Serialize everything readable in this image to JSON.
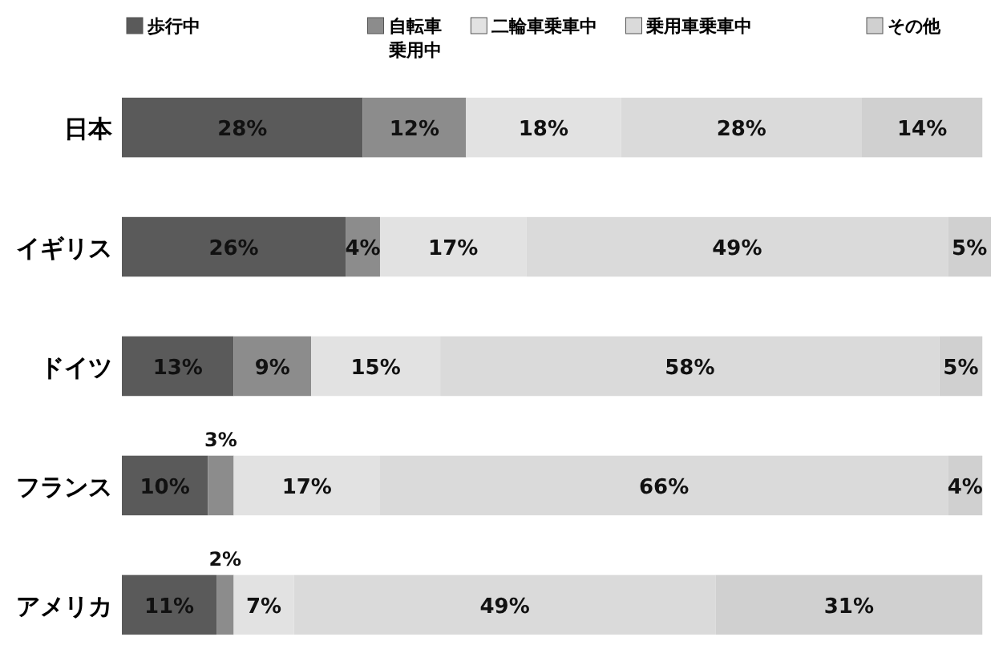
{
  "chart_data": {
    "type": "bar",
    "orientation": "horizontal",
    "stacked": true,
    "legend": "top",
    "tick_labels": "y",
    "xlim": [
      0,
      101
    ],
    "categories": [
      "日本",
      "イギリス",
      "ドイツ",
      "フランス",
      "アメリカ"
    ],
    "series": [
      {
        "name": "歩行中",
        "color": "#5a5a5a",
        "values": [
          28,
          26,
          13,
          10,
          11
        ],
        "value_labels": [
          "28%",
          "26%",
          "13%",
          "10%",
          "11%"
        ]
      },
      {
        "name": "自転車乗用中",
        "color": "#8c8c8c",
        "values": [
          12,
          4,
          9,
          3,
          2
        ],
        "value_labels": [
          "12%",
          "4%",
          "9%",
          "3%",
          "2%"
        ]
      },
      {
        "name": "二輪車乗車中",
        "color": "#e2e2e2",
        "values": [
          18,
          17,
          15,
          17,
          7
        ],
        "value_labels": [
          "18%",
          "17%",
          "15%",
          "17%",
          "7%"
        ]
      },
      {
        "name": "乗用車乗車中",
        "color": "#dadada",
        "values": [
          28,
          49,
          58,
          66,
          49
        ],
        "value_labels": [
          "28%",
          "49%",
          "58%",
          "66%",
          "49%"
        ]
      },
      {
        "name": "その他",
        "color": "#d0d0d0",
        "values": [
          14,
          5,
          5,
          4,
          31
        ],
        "value_labels": [
          "14%",
          "5%",
          "5%",
          "4%",
          "31%"
        ]
      }
    ]
  }
}
